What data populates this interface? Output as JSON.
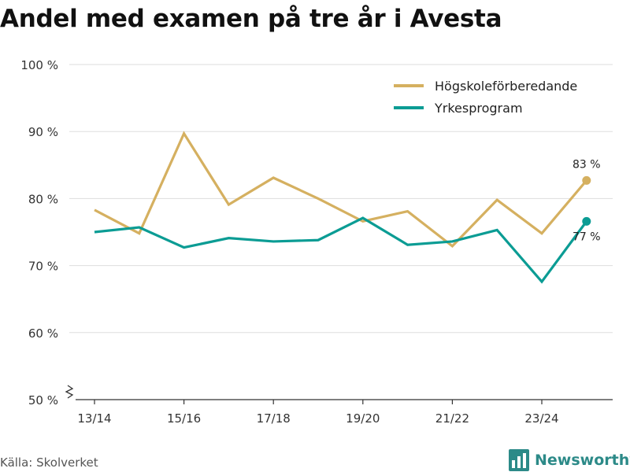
{
  "title": "Andel med examen på tre år i Avesta",
  "source": "Källa: Skolverket",
  "brand": {
    "name": "Newsworthy",
    "icon": "bar-chart-logo-icon"
  },
  "colors": {
    "hogskola": "#d5b060",
    "yrkes": "#0b9c94",
    "grid": "#dddddd",
    "axis": "#333333"
  },
  "chart_data": {
    "type": "line",
    "title": "Andel med examen på tre år i Avesta",
    "xlabel": "",
    "ylabel": "",
    "ylim": [
      50,
      100
    ],
    "yticks": [
      50,
      60,
      70,
      80,
      90,
      100
    ],
    "ytick_labels": [
      "50 %",
      "60 %",
      "70 %",
      "80 %",
      "90 %",
      "100 %"
    ],
    "categories": [
      "13/14",
      "14/15",
      "15/16",
      "16/17",
      "17/18",
      "18/19",
      "19/20",
      "20/21",
      "21/22",
      "22/23",
      "23/24",
      "24/25"
    ],
    "xtick_labels": [
      "13/14",
      "15/16",
      "17/18",
      "19/20",
      "21/22",
      "23/24"
    ],
    "series": [
      {
        "name": "Högskoleförberedande",
        "color": "#d5b060",
        "values": [
          78.3,
          74.8,
          89.7,
          79.1,
          83.1,
          80.0,
          76.6,
          78.1,
          72.9,
          79.8,
          74.8,
          82.7
        ],
        "end_label": "83 %"
      },
      {
        "name": "Yrkesprogram",
        "color": "#0b9c94",
        "values": [
          75.0,
          75.7,
          72.7,
          74.1,
          73.6,
          73.8,
          77.1,
          73.1,
          73.6,
          75.3,
          67.6,
          76.6
        ],
        "end_label": "77 %"
      }
    ],
    "legend": "top-right",
    "grid": true
  }
}
